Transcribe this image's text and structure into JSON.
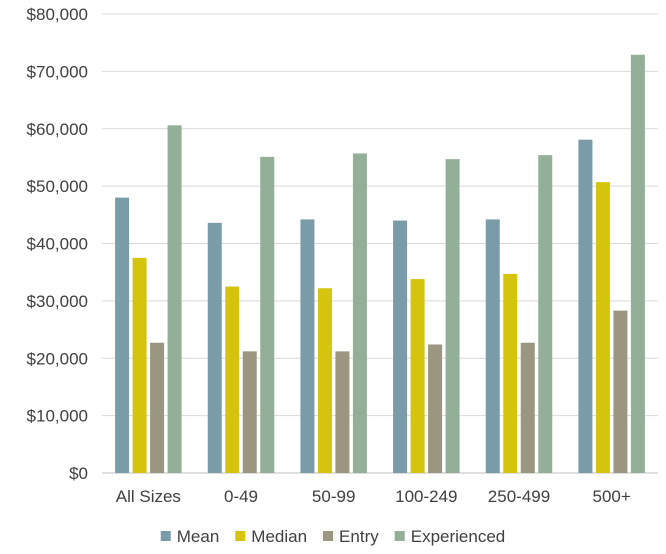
{
  "chart_data": {
    "type": "bar",
    "categories": [
      "All Sizes",
      "0-49",
      "50-99",
      "100-249",
      "250-499",
      "500+"
    ],
    "series": [
      {
        "name": "Mean",
        "color": "#7a9ca8",
        "values": [
          48000,
          43600,
          44200,
          44000,
          44200,
          58100
        ]
      },
      {
        "name": "Median",
        "color": "#d4c40e",
        "values": [
          37500,
          32500,
          32200,
          33800,
          34700,
          50700
        ]
      },
      {
        "name": "Entry",
        "color": "#9a9680",
        "values": [
          22700,
          21200,
          21200,
          22400,
          22700,
          28300
        ]
      },
      {
        "name": "Experienced",
        "color": "#94af97",
        "values": [
          60600,
          55100,
          55700,
          54700,
          55400,
          72900
        ]
      }
    ],
    "ylim": [
      0,
      80000
    ],
    "yticks": [
      0,
      10000,
      20000,
      30000,
      40000,
      50000,
      60000,
      70000,
      80000
    ],
    "ytick_labels": [
      "$0",
      "$10,000",
      "$20,000",
      "$30,000",
      "$40,000",
      "$50,000",
      "$60,000",
      "$70,000",
      "$80,000"
    ],
    "grid": true,
    "legend_position": "bottom"
  }
}
